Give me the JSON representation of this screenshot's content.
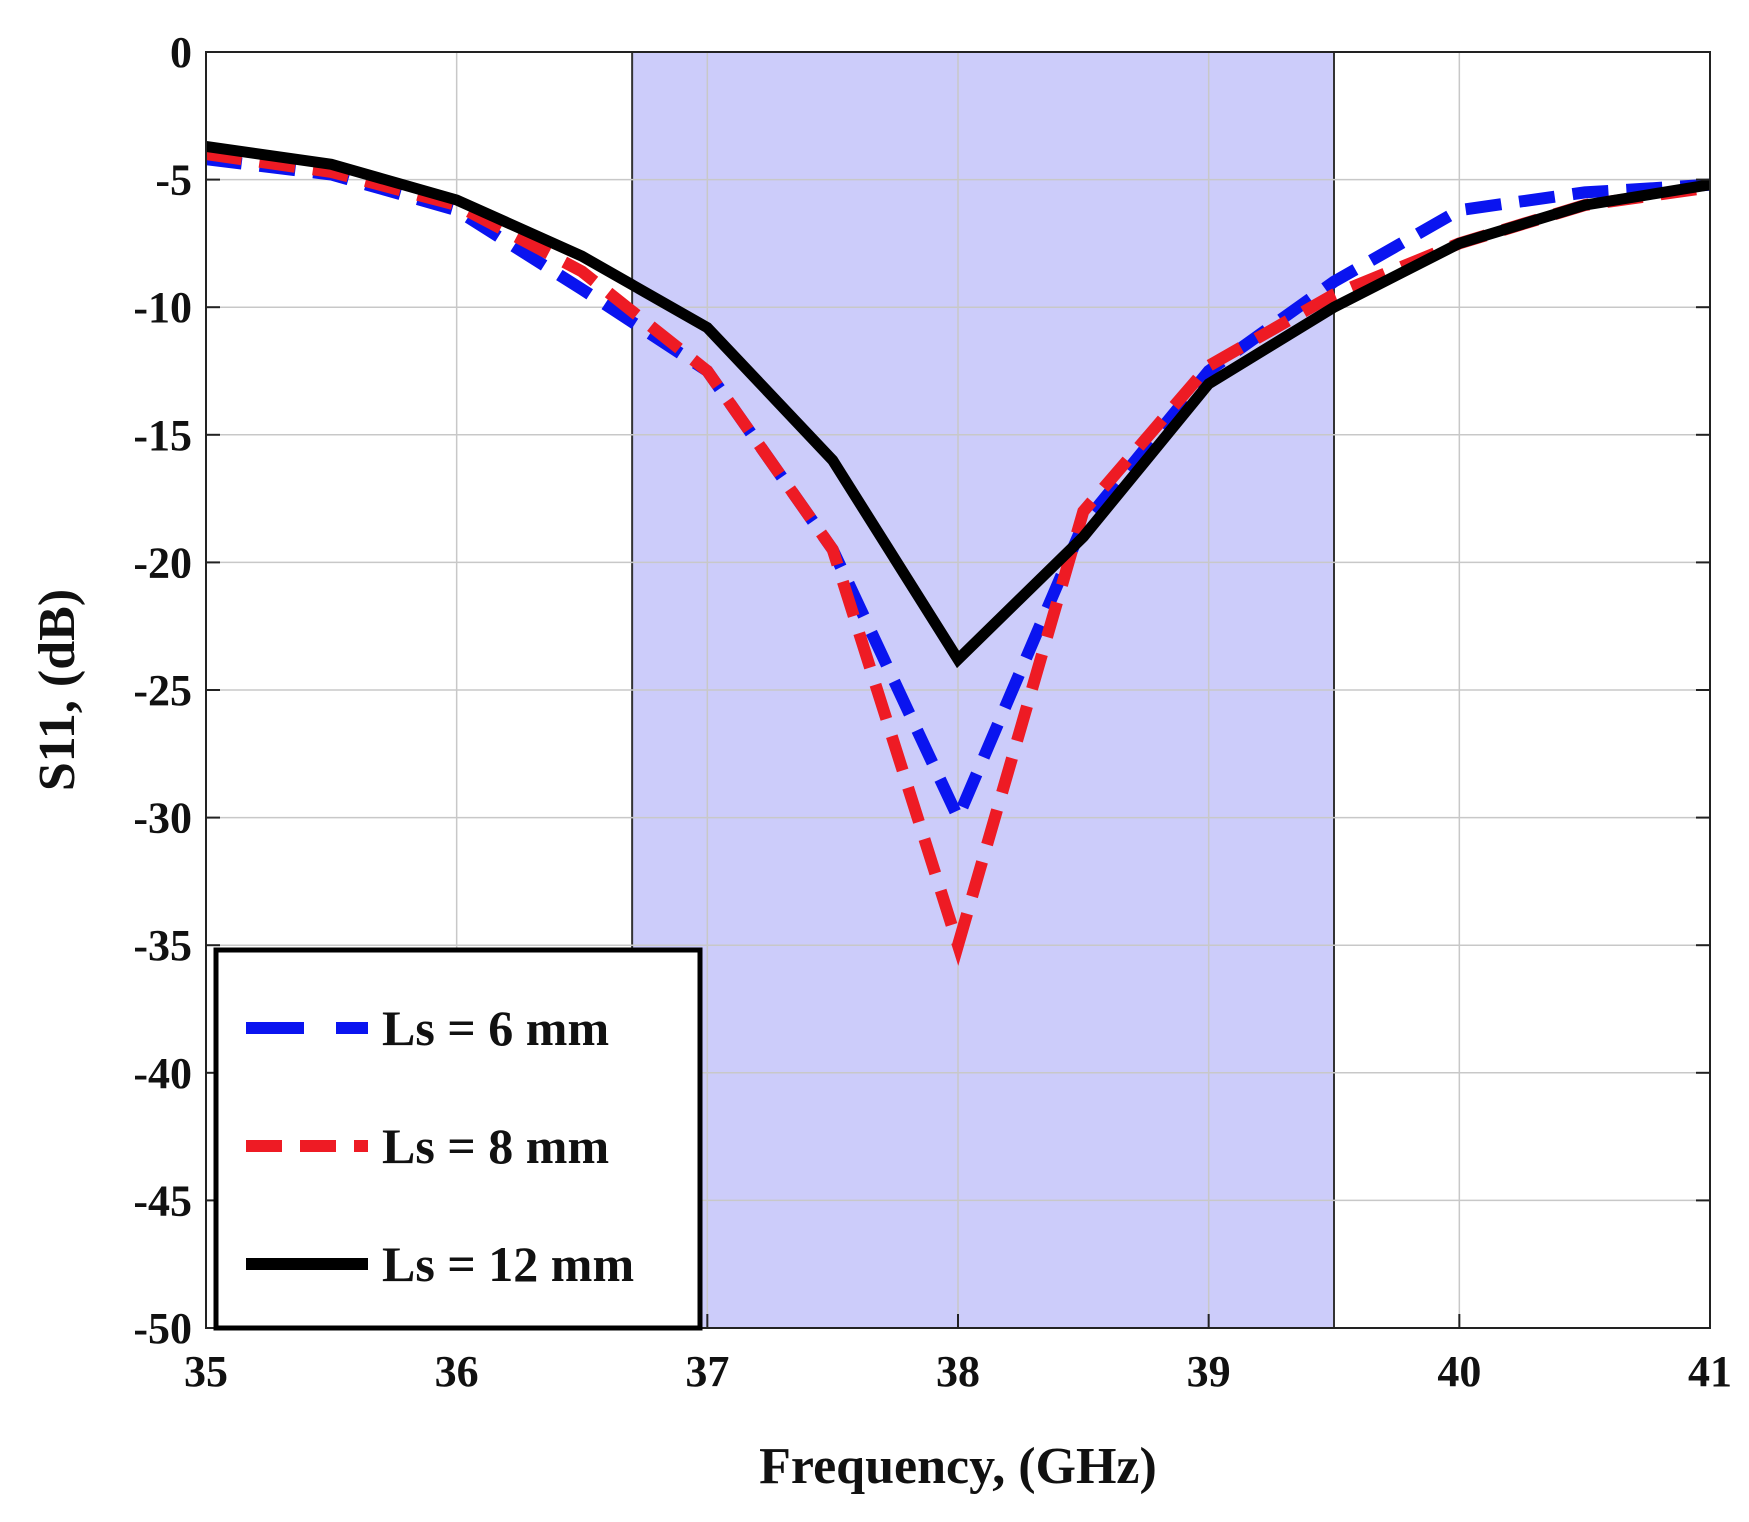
{
  "chart_data": {
    "type": "line",
    "title": "",
    "xlabel": "Frequency, (GHz)",
    "ylabel": "S11, (dB)",
    "xlim": [
      35,
      41
    ],
    "ylim": [
      -50,
      0
    ],
    "xticks": [
      "35",
      "36",
      "37",
      "38",
      "39",
      "40",
      "41"
    ],
    "yticks": [
      "0",
      "-5",
      "-10",
      "-15",
      "-20",
      "-25",
      "-30",
      "-35",
      "-40",
      "-45",
      "-50"
    ],
    "grid": true,
    "legend_position": "bottom-left",
    "highlight_band": {
      "x_start": 36.7,
      "x_end": 39.5,
      "color": "#ccccfa"
    },
    "series": [
      {
        "name": "Ls = 6 mm",
        "color": "#0a14f0",
        "style": "dashed",
        "x": [
          35.0,
          35.5,
          36.0,
          36.5,
          37.0,
          37.5,
          38.0,
          38.5,
          39.0,
          39.5,
          40.0,
          40.5,
          41.0
        ],
        "y": [
          -4.2,
          -4.8,
          -6.2,
          -9.3,
          -12.5,
          -19.5,
          -30.0,
          -18.5,
          -12.5,
          -9.0,
          -6.2,
          -5.5,
          -5.2
        ]
      },
      {
        "name": "Ls = 8 mm",
        "color": "#ee1b24",
        "style": "dashed",
        "x": [
          35.0,
          35.5,
          36.0,
          36.5,
          37.0,
          37.5,
          38.0,
          38.5,
          39.0,
          39.5,
          40.0,
          40.5,
          41.0
        ],
        "y": [
          -4.0,
          -4.7,
          -6.0,
          -8.6,
          -12.5,
          -19.5,
          -35.0,
          -18.0,
          -12.3,
          -9.5,
          -7.5,
          -6.0,
          -5.3
        ]
      },
      {
        "name": "Ls = 12 mm",
        "color": "#000000",
        "style": "solid",
        "x": [
          35.0,
          35.5,
          36.0,
          36.5,
          37.0,
          37.5,
          38.0,
          38.5,
          39.0,
          39.5,
          40.0,
          40.5,
          41.0
        ],
        "y": [
          -3.7,
          -4.4,
          -5.8,
          -8.0,
          -10.8,
          -16.0,
          -23.8,
          -19.0,
          -13.0,
          -10.0,
          -7.5,
          -6.0,
          -5.2
        ]
      }
    ]
  }
}
